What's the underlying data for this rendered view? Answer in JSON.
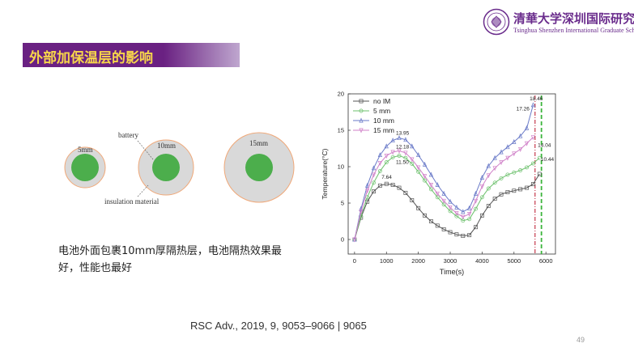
{
  "header": {
    "logo_cn": "清華大学深圳国际研究生院",
    "logo_en": "Tsinghua Shenzhen International Graduate School"
  },
  "slide": {
    "title": "外部加保温层的影响",
    "caption": "电池外面包裹10mm厚隔热层，电池隔热效果最好，性能也最好",
    "reference": "RSC Adv., 2019, 9, 9053–9066 | 9065",
    "page_number": "49"
  },
  "diagram": {
    "labels": {
      "battery": "battery",
      "insulation": "insulation material"
    },
    "circles": [
      {
        "label": "5mm"
      },
      {
        "label": "10mm"
      },
      {
        "label": "15mm"
      }
    ],
    "colors": {
      "insulation_fill": "#d9d9d9",
      "insulation_edge": "#f0a878",
      "battery_fill": "#4cae4c"
    }
  },
  "chart_data": {
    "type": "line",
    "title": "",
    "xlabel": "Time(s)",
    "ylabel": "Temperature(°C)",
    "xlim": [
      -200,
      6300
    ],
    "ylim": [
      -2,
      20
    ],
    "xticks": [
      0,
      1000,
      2000,
      3000,
      4000,
      5000,
      6000
    ],
    "yticks": [
      0,
      5,
      10,
      15,
      20
    ],
    "legend_position": "top-left",
    "series": [
      {
        "name": "no IM",
        "color": "#555555",
        "marker": "square",
        "x": [
          0,
          200,
          400,
          600,
          800,
          1000,
          1200,
          1400,
          1600,
          1800,
          2000,
          2200,
          2400,
          2600,
          2800,
          3000,
          3200,
          3400,
          3600,
          3800,
          4000,
          4200,
          4400,
          4600,
          4800,
          5000,
          5200,
          5400,
          5600,
          5800
        ],
        "y": [
          0,
          3.0,
          5.2,
          6.6,
          7.4,
          7.64,
          7.5,
          7.1,
          6.4,
          5.4,
          4.3,
          3.3,
          2.5,
          1.9,
          1.4,
          1.0,
          0.7,
          0.5,
          0.6,
          1.7,
          3.3,
          4.6,
          5.6,
          6.2,
          6.5,
          6.7,
          6.9,
          7.1,
          7.6,
          9.0
        ]
      },
      {
        "name": "5 mm",
        "color": "#6cc06c",
        "marker": "circle",
        "x": [
          0,
          200,
          400,
          600,
          800,
          1000,
          1200,
          1400,
          1600,
          1800,
          2000,
          2200,
          2400,
          2600,
          2800,
          3000,
          3200,
          3400,
          3600,
          3800,
          4000,
          4200,
          4400,
          4600,
          4800,
          5000,
          5200,
          5400,
          5600,
          5800
        ],
        "y": [
          0,
          3.2,
          5.8,
          7.8,
          9.4,
          10.6,
          11.3,
          11.5,
          11.2,
          10.4,
          9.3,
          8.1,
          6.9,
          5.8,
          4.8,
          3.9,
          3.2,
          2.6,
          2.8,
          4.2,
          5.8,
          7.0,
          7.8,
          8.4,
          8.9,
          9.2,
          9.5,
          9.9,
          10.44,
          11.2
        ]
      },
      {
        "name": "10 mm",
        "color": "#6a7ac8",
        "marker": "triangle",
        "x": [
          0,
          200,
          400,
          600,
          800,
          1000,
          1200,
          1400,
          1600,
          1800,
          2000,
          2200,
          2400,
          2600,
          2800,
          3000,
          3200,
          3400,
          3600,
          3800,
          4000,
          4200,
          4400,
          4600,
          4800,
          5000,
          5200,
          5400,
          5600
        ],
        "y": [
          0,
          4.2,
          7.4,
          9.8,
          11.6,
          12.8,
          13.6,
          13.95,
          13.7,
          12.8,
          11.6,
          10.3,
          8.9,
          7.5,
          6.3,
          5.2,
          4.4,
          3.8,
          4.3,
          6.3,
          8.5,
          10.1,
          11.2,
          12.0,
          12.7,
          13.4,
          14.2,
          15.3,
          18.46
        ]
      },
      {
        "name": "15 mm",
        "color": "#d080c8",
        "marker": "triangle-down",
        "x": [
          0,
          200,
          400,
          600,
          800,
          1000,
          1200,
          1400,
          1600,
          1800,
          2000,
          2200,
          2400,
          2600,
          2800,
          3000,
          3200,
          3400,
          3600,
          3800,
          4000,
          4200,
          4400,
          4600,
          4800,
          5000,
          5200,
          5400,
          5600
        ],
        "y": [
          0,
          3.8,
          6.7,
          8.9,
          10.5,
          11.5,
          12.0,
          12.18,
          11.9,
          11.0,
          9.9,
          8.7,
          7.5,
          6.3,
          5.3,
          4.4,
          3.6,
          3.1,
          3.5,
          5.3,
          7.3,
          8.8,
          9.8,
          10.6,
          11.2,
          11.8,
          12.4,
          13.2,
          14.04
        ]
      }
    ],
    "annotations": [
      "13.95",
      "12.18",
      "11.50",
      "7.64",
      "18.46",
      "17.26",
      "14.04",
      "10.44"
    ],
    "annotation_points": [
      {
        "text": "13.95",
        "x": 1500,
        "y": 13.95
      },
      {
        "text": "12.18",
        "x": 1500,
        "y": 12.18
      },
      {
        "text": "11.50",
        "x": 1500,
        "y": 11.5
      },
      {
        "text": "7.64",
        "x": 1000,
        "y": 7.64
      },
      {
        "text": "18.46",
        "x": 5720,
        "y": 18.46
      },
      {
        "text": "17.26",
        "x": 5680,
        "y": 17.26
      },
      {
        "text": "14.04",
        "x": 5720,
        "y": 14.04
      },
      {
        "text": "10.44",
        "x": 5840,
        "y": 10.44
      }
    ],
    "cutoff_lines": [
      {
        "x": 5660,
        "color": "#c0283c",
        "style": "dash-dot"
      },
      {
        "x": 5860,
        "color": "#3cb43c",
        "style": "dash"
      }
    ]
  }
}
